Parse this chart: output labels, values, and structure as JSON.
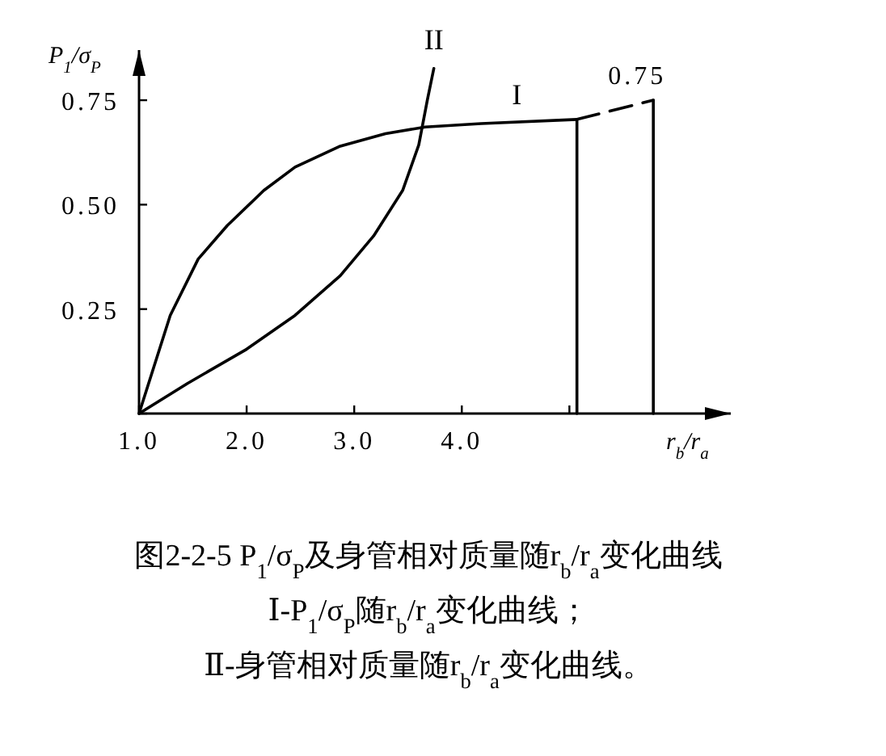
{
  "chart_data": {
    "type": "line",
    "xlabel": "r$_{b}$/r$_{a}$",
    "ylabel": "P$_{1}$/σ$_{P}$",
    "xlim": [
      1,
      6.5
    ],
    "ylim": [
      0,
      0.87
    ],
    "xticks": [
      {
        "value": 1,
        "label": "1.0"
      },
      {
        "value": 2,
        "label": "2.0"
      },
      {
        "value": 3,
        "label": "3.0"
      },
      {
        "value": 4,
        "label": "4.0"
      },
      {
        "value": 5,
        "label": null
      }
    ],
    "yticks": [
      {
        "value": 0,
        "label": null
      },
      {
        "value": 0.25,
        "label": "0.25"
      },
      {
        "value": 0.5,
        "label": "0.50"
      },
      {
        "value": 0.75,
        "label": "0.75"
      }
    ],
    "series": [
      {
        "name": "I",
        "color": "#000000",
        "x": [
          1,
          1.29,
          1.55,
          1.82,
          2.16,
          2.45,
          2.87,
          3.29,
          3.66,
          4.18,
          5.07
        ],
        "values": [
          0,
          0.235,
          0.37,
          0.45,
          0.534,
          0.59,
          0.64,
          0.67,
          0.686,
          0.694,
          0.704
        ]
      },
      {
        "name": "II",
        "color": "#000000",
        "x": [
          1,
          1.45,
          2.0,
          2.45,
          2.87,
          3.18,
          3.45,
          3.6,
          3.68,
          3.74
        ],
        "values": [
          0,
          0.072,
          0.154,
          0.235,
          0.33,
          0.425,
          0.534,
          0.643,
          0.751,
          0.826
        ]
      },
      {
        "color": "#000000",
        "line_style": "dashed",
        "x": [
          5.07,
          5.78
        ],
        "values": [
          0.704,
          0.75
        ]
      },
      {
        "color": "#000000",
        "x": [
          5.07,
          5.07
        ],
        "values": [
          0,
          0.704
        ]
      },
      {
        "color": "#000000",
        "x": [
          5.78,
          5.78
        ],
        "values": [
          0,
          0.75
        ]
      }
    ],
    "annotations": [
      {
        "text": "0.75",
        "x": 5.78,
        "y": 0.75
      },
      "图2-2-5 P$_{1}$/σ$_{P}$及身管相对质量随r$_{b}$/r$_{a}$变化曲线",
      "Ⅰ-P$_{1}$/σ$_{P}$随r$_{b}$/r$_{a}$变化曲线；",
      "Ⅱ-身管相对质量随r$_{b}$/r$_{a}$变化曲线。"
    ]
  }
}
